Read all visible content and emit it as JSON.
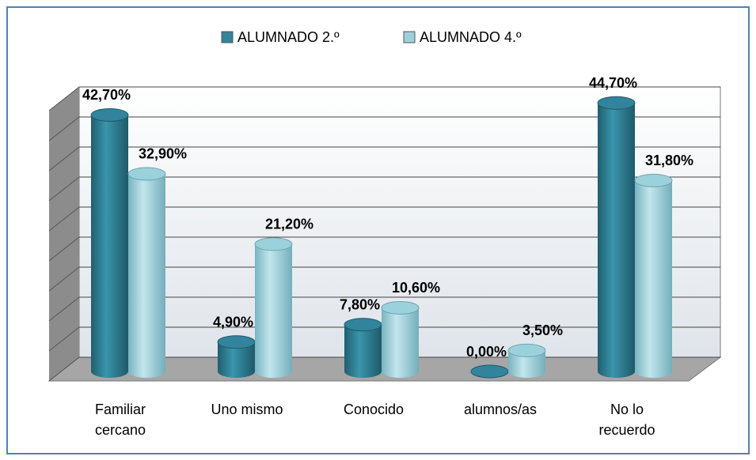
{
  "chart_data": {
    "type": "bar",
    "style": "3d-cylinder",
    "categories": [
      "Familiar cercano",
      "Uno mismo",
      "Conocido",
      "alumnos/as",
      "No lo recuerdo"
    ],
    "series": [
      {
        "name": "ALUMNADO 2.º",
        "color": "#31849b",
        "values": [
          42.7,
          4.9,
          7.8,
          0.0,
          44.7
        ],
        "value_labels": [
          "42,70%",
          "4,90%",
          "7,80%",
          "0,00%",
          "44,70%"
        ]
      },
      {
        "name": "ALUMNADO 4.º",
        "color": "#9bd1db",
        "values": [
          32.9,
          21.2,
          10.6,
          3.5,
          31.8
        ],
        "value_labels": [
          "32,90%",
          "21,20%",
          "10,60%",
          "3,50%",
          "31,80%"
        ]
      }
    ],
    "ylim": [
      0,
      45
    ],
    "yticks": [
      0,
      5,
      10,
      15,
      20,
      25,
      30,
      35,
      40,
      45
    ],
    "grid": true,
    "legend": "top"
  }
}
